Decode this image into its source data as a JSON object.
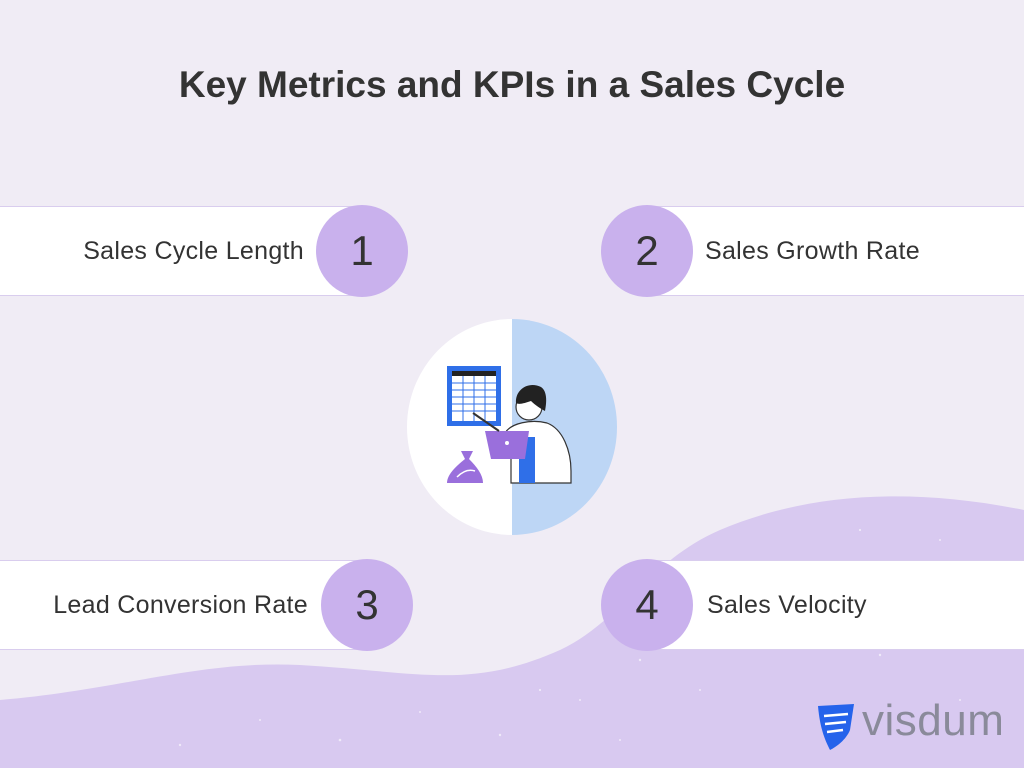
{
  "title": "Key Metrics and KPIs in a Sales Cycle",
  "metrics": [
    {
      "number": "1",
      "label": "Sales Cycle Length"
    },
    {
      "number": "2",
      "label": "Sales Growth Rate"
    },
    {
      "number": "3",
      "label": "Lead Conversion Rate"
    },
    {
      "number": "4",
      "label": "Sales Velocity"
    }
  ],
  "brand": {
    "name": "visdum",
    "color": "#2563eb"
  },
  "colors": {
    "background": "#f0ecf5",
    "number_circle": "#c9b1ed",
    "wave": "#d8c9f0",
    "illustration_half": "#bdd6f5"
  },
  "icons": [
    "analyst-illustration",
    "visdum-logo-icon"
  ]
}
